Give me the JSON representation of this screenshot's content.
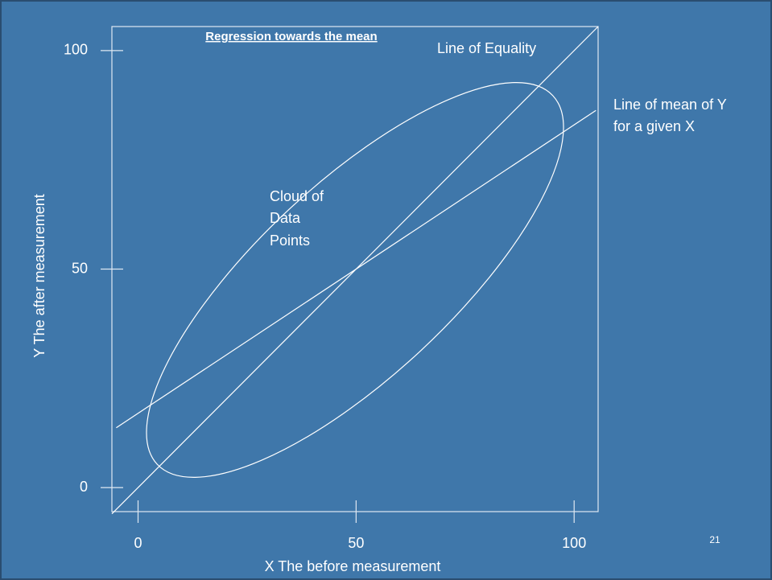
{
  "chart_data": {
    "type": "line",
    "title": "Regression towards the mean",
    "x_label": "X The before measurement",
    "y_label": "Y The after measurement",
    "xlim": [
      -6,
      105.5
    ],
    "ylim": [
      -5.5,
      105.5
    ],
    "xticks": [
      0,
      50,
      100
    ],
    "yticks": [
      0,
      50,
      100
    ],
    "series": [
      {
        "name": "Line of Equality",
        "color": "#ffffff",
        "x": [
          -6,
          105.5
        ],
        "values": [
          -6,
          105.5
        ]
      },
      {
        "color": "#ffffff",
        "x": [
          -5,
          105
        ],
        "values": [
          13.7,
          86.3
        ]
      }
    ],
    "annotations": [
      "Line of mean of Y",
      "for a given X",
      "Cloud of",
      "Data",
      "Points"
    ],
    "page_number": "21"
  }
}
